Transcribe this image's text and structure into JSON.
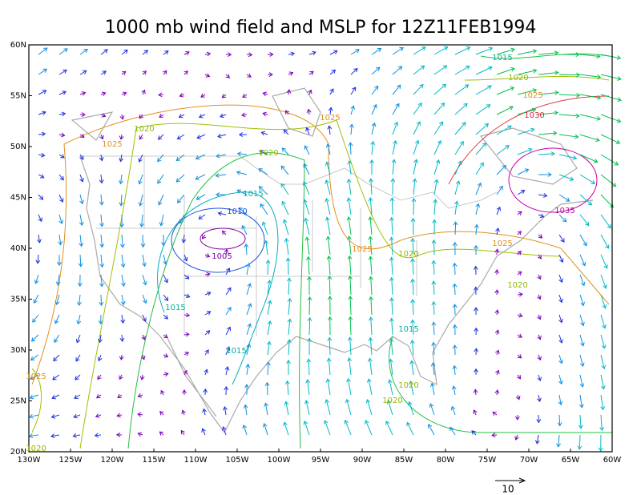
{
  "title": "1000 mb wind field and MSLP for 12Z11FEB1994",
  "map": {
    "lon_labels": [
      "130W",
      "125W",
      "120W",
      "115W",
      "110W",
      "105W",
      "100W",
      "95W",
      "90W",
      "85W",
      "80W",
      "75W",
      "70W",
      "65W",
      "60W"
    ],
    "lat_labels": [
      "60N",
      "55N",
      "50N",
      "45N",
      "40N",
      "35N",
      "30N",
      "25N",
      "20N"
    ],
    "contour_labels": [
      1015,
      1020,
      1025,
      1030,
      1020,
      1025,
      1025,
      1020,
      1015,
      1010,
      1005,
      1035,
      1025,
      1020,
      1025,
      1020,
      1015,
      1015,
      1015,
      1020,
      1020,
      1025,
      1020
    ],
    "reference_vector": 10
  }
}
